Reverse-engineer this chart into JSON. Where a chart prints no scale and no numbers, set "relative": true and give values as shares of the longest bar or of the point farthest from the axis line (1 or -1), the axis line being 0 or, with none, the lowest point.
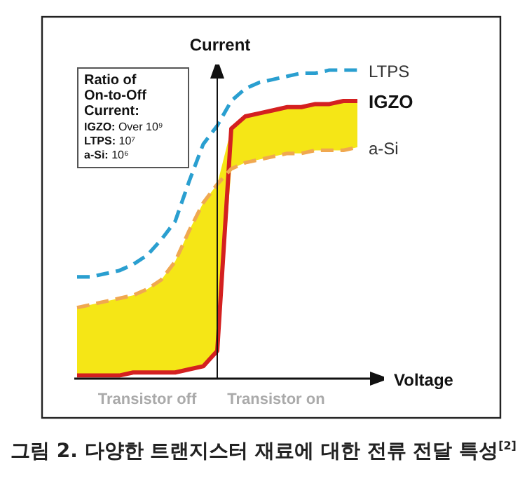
{
  "chart_data": {
    "type": "line",
    "relative": true,
    "title": "그림 2. 다양한 트랜지스터 재료에 대한 전류 전달 특성$^{[2]}$",
    "xlabel": "Voltage",
    "ylabel": "Current",
    "annotations": [
      "Ratio of On-to-Off Current:",
      "IGZO: Over 10⁹",
      "LTPS: 10⁷",
      "a-Si: 10⁶",
      "Transistor off",
      "Transistor on"
    ],
    "categories": [
      null,
      null,
      null,
      null,
      null,
      null,
      null,
      null,
      null,
      null,
      null,
      null,
      null,
      null,
      null,
      null,
      null,
      null,
      null,
      null,
      null
    ],
    "series": [
      {
        "name": "LTPS",
        "color": "#2a9fd0",
        "line_style": "dashed",
        "values": [
          0.33,
          0.33,
          0.34,
          0.35,
          0.37,
          0.4,
          0.45,
          0.51,
          0.64,
          0.76,
          0.82,
          0.9,
          0.94,
          0.96,
          0.97,
          0.98,
          0.99,
          0.99,
          1.0,
          1.0,
          1.0
        ]
      },
      {
        "name": "IGZO",
        "color": "#d42020",
        "line_style": "solid",
        "values": [
          0.01,
          0.01,
          0.01,
          0.01,
          0.02,
          0.02,
          0.02,
          0.02,
          0.03,
          0.04,
          0.09,
          0.81,
          0.85,
          0.86,
          0.87,
          0.88,
          0.88,
          0.89,
          0.89,
          0.9,
          0.9
        ],
        "lower": [
          0.01,
          0.01,
          0.01,
          0.01,
          0.02,
          0.02,
          0.02,
          0.02,
          0.03,
          0.04,
          0.09,
          0.68,
          0.7,
          0.71,
          0.72,
          0.73,
          0.73,
          0.74,
          0.74,
          0.74,
          0.75
        ],
        "upper": [
          0.23,
          0.24,
          0.25,
          0.26,
          0.27,
          0.29,
          0.32,
          0.38,
          0.48,
          0.57,
          0.63,
          0.81,
          0.85,
          0.86,
          0.87,
          0.88,
          0.88,
          0.89,
          0.89,
          0.9,
          0.9
        ]
      },
      {
        "name": "a-Si",
        "color": "#f0a850",
        "line_style": "dashed",
        "values": [
          0.23,
          0.24,
          0.25,
          0.26,
          0.27,
          0.29,
          0.32,
          0.38,
          0.48,
          0.57,
          0.63,
          0.68,
          0.7,
          0.71,
          0.72,
          0.73,
          0.73,
          0.74,
          0.74,
          0.74,
          0.75
        ]
      }
    ]
  }
}
